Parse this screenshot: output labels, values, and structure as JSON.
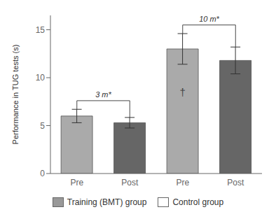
{
  "chart_data": {
    "type": "bar",
    "ylabel": "Performance in TUG tests (s)",
    "categories": [
      "Pre",
      "Post",
      "Pre",
      "Post"
    ],
    "values": [
      6.0,
      5.3,
      13.0,
      11.8
    ],
    "errors": [
      0.7,
      0.55,
      1.6,
      1.4
    ],
    "colors": [
      "#aaaaaa",
      "#666666",
      "#aaaaaa",
      "#666666"
    ],
    "ylim": [
      0,
      16.5
    ],
    "yticks": [
      0,
      5,
      10,
      15
    ],
    "grid": false,
    "legend": "bottom",
    "legend_entries": [
      {
        "label": "Training (BMT) group",
        "color": "#999999"
      },
      {
        "label": "Control group",
        "color": "#ffffff"
      }
    ],
    "brackets": [
      {
        "text": "3 m*",
        "x": [
          0,
          1
        ],
        "y": 7.6
      },
      {
        "text": "10 m*",
        "x": [
          2,
          3
        ],
        "y": 15.5
      }
    ],
    "annotations": [
      {
        "text": "†",
        "x": 2,
        "y": 8.5
      }
    ]
  }
}
